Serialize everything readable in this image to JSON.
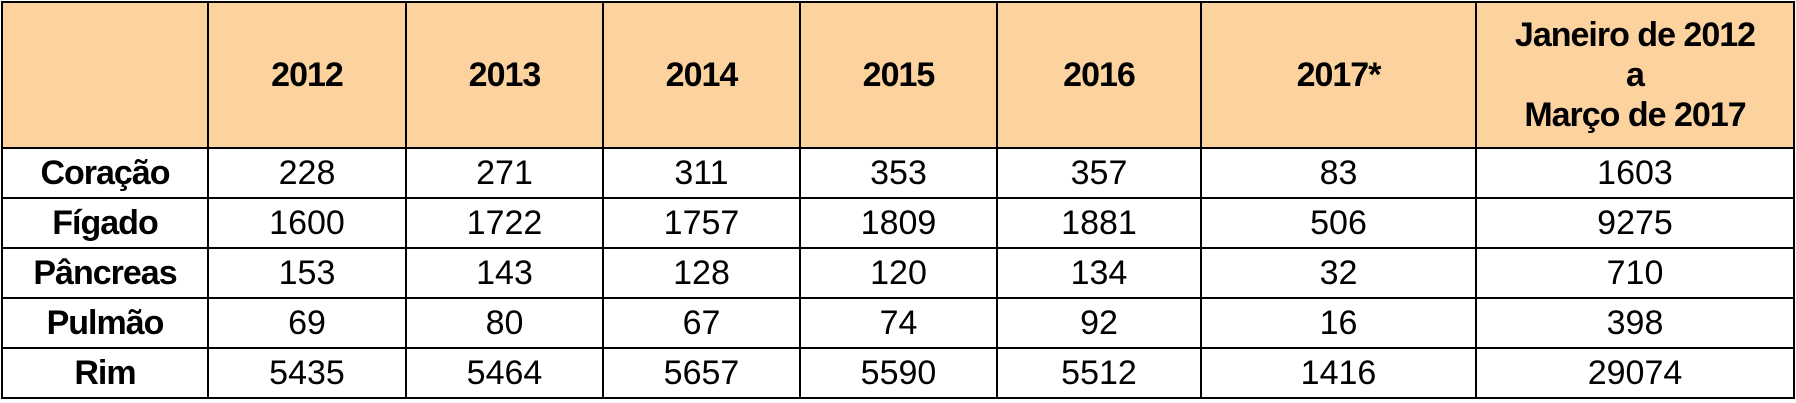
{
  "table": {
    "header": [
      "",
      "2012",
      "2013",
      "2014",
      "2015",
      "2016",
      "2017*",
      "Janeiro de 2012\na\nMarço de 2017"
    ],
    "rows": [
      [
        "Coração",
        228,
        271,
        311,
        353,
        357,
        83,
        1603
      ],
      [
        "Fígado",
        1600,
        1722,
        1757,
        1809,
        1881,
        506,
        9275
      ],
      [
        "Pâncreas",
        153,
        143,
        128,
        120,
        134,
        32,
        710
      ],
      [
        "Pulmão",
        69,
        80,
        67,
        74,
        92,
        16,
        398
      ],
      [
        "Rim",
        5435,
        5464,
        5657,
        5590,
        5512,
        1416,
        29074
      ]
    ]
  }
}
